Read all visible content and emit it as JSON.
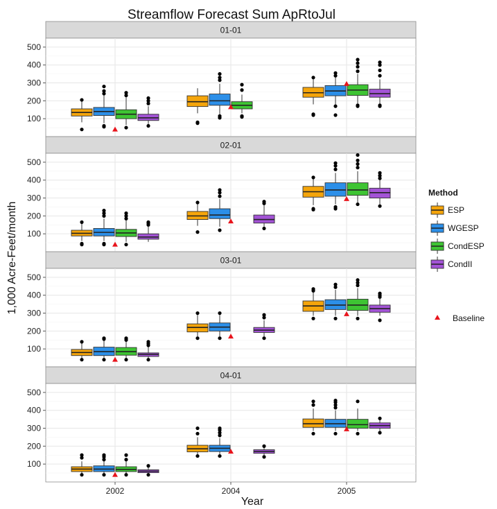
{
  "chart_data": {
    "type": "boxplot",
    "title": "Streamflow Forecast Sum ApRtoJul",
    "xlabel": "Year",
    "ylabel": "1,000 Acre-Feet/month",
    "ylim": [
      0,
      550
    ],
    "y_ticks": [
      100,
      200,
      300,
      400,
      500
    ],
    "x_categories": [
      "2002",
      "2004",
      "2005"
    ],
    "legend": {
      "title": "Method",
      "position": "right",
      "entries": [
        {
          "name": "ESP",
          "color": "#f5a50b"
        },
        {
          "name": "WGESP",
          "color": "#2c8fe8"
        },
        {
          "name": "CondESP",
          "color": "#3ec433"
        },
        {
          "name": "CondII",
          "color": "#a353d6"
        }
      ],
      "baseline": {
        "name": "Baseline",
        "color": "#e8141c"
      }
    },
    "panels": [
      {
        "strip": "01-01",
        "groups": [
          {
            "x": "2002",
            "baseline": 40,
            "boxes": [
              {
                "method": "ESP",
                "min": 80,
                "q1": 115,
                "median": 135,
                "q3": 155,
                "max": 200,
                "outliers": [
                  40,
                  205
                ]
              },
              {
                "method": "WGESP",
                "min": 75,
                "q1": 118,
                "median": 140,
                "q3": 163,
                "max": 230,
                "outliers": [
                  55,
                  60,
                  240,
                  255,
                  280
                ]
              },
              {
                "method": "CondESP",
                "min": 65,
                "q1": 100,
                "median": 125,
                "q3": 150,
                "max": 220,
                "outliers": [
                  50,
                  230,
                  245
                ]
              },
              {
                "method": "CondII",
                "min": 70,
                "q1": 90,
                "median": 105,
                "q3": 125,
                "max": 170,
                "outliers": [
                  60,
                  185,
                  200,
                  215
                ]
              }
            ]
          },
          {
            "x": "2004",
            "baseline": 165,
            "boxes": [
              {
                "method": "ESP",
                "min": 130,
                "q1": 168,
                "median": 195,
                "q3": 228,
                "max": 270,
                "outliers": [
                  75,
                  80
                ]
              },
              {
                "method": "WGESP",
                "min": 125,
                "q1": 175,
                "median": 200,
                "q3": 238,
                "max": 295,
                "outliers": [
                  105,
                  115,
                  315,
                  330,
                  350
                ]
              },
              {
                "method": "CondESP",
                "min": 130,
                "q1": 155,
                "median": 175,
                "q3": 195,
                "max": 235,
                "outliers": [
                  110,
                  115,
                  260,
                  290
                ]
              },
              {
                "method": "CondII",
                "min": 0,
                "q1": 0,
                "median": 0,
                "q3": 0,
                "max": 0,
                "outliers": [],
                "hidden": true
              }
            ]
          },
          {
            "x": "2005",
            "baseline": 295,
            "boxes": [
              {
                "method": "ESP",
                "min": 180,
                "q1": 220,
                "median": 245,
                "q3": 275,
                "max": 320,
                "outliers": [
                  120,
                  125,
                  330
                ]
              },
              {
                "method": "WGESP",
                "min": 180,
                "q1": 228,
                "median": 255,
                "q3": 285,
                "max": 330,
                "outliers": [
                  120,
                  170,
                  340,
                  355
                ]
              },
              {
                "method": "CondESP",
                "min": 185,
                "q1": 230,
                "median": 260,
                "q3": 290,
                "max": 350,
                "outliers": [
                  170,
                  175,
                  365,
                  390,
                  410,
                  430
                ]
              },
              {
                "method": "CondII",
                "min": 180,
                "q1": 220,
                "median": 240,
                "q3": 265,
                "max": 320,
                "outliers": [
                  170,
                  175,
                  340,
                  370,
                  400,
                  415
                ]
              }
            ]
          }
        ]
      },
      {
        "strip": "02-01",
        "groups": [
          {
            "x": "2002",
            "baseline": 40,
            "boxes": [
              {
                "method": "ESP",
                "min": 60,
                "q1": 88,
                "median": 103,
                "q3": 120,
                "max": 155,
                "outliers": [
                  40,
                  45,
                  165
                ]
              },
              {
                "method": "WGESP",
                "min": 60,
                "q1": 88,
                "median": 108,
                "q3": 130,
                "max": 185,
                "outliers": [
                  40,
                  45,
                  200,
                  215,
                  230
                ]
              },
              {
                "method": "CondESP",
                "min": 55,
                "q1": 85,
                "median": 105,
                "q3": 125,
                "max": 175,
                "outliers": [
                  40,
                  185,
                  200,
                  215
                ]
              },
              {
                "method": "CondII",
                "min": 55,
                "q1": 70,
                "median": 82,
                "q3": 100,
                "max": 140,
                "outliers": [
                  150,
                  160,
                  165
                ]
              }
            ]
          },
          {
            "x": "2004",
            "baseline": 170,
            "boxes": [
              {
                "method": "ESP",
                "min": 145,
                "q1": 180,
                "median": 200,
                "q3": 225,
                "max": 270,
                "outliers": [
                  110,
                  275
                ]
              },
              {
                "method": "WGESP",
                "min": 140,
                "q1": 185,
                "median": 205,
                "q3": 240,
                "max": 295,
                "outliers": [
                  120,
                  310,
                  330,
                  345
                ]
              },
              {
                "method": "CondESP",
                "min": 0,
                "q1": 0,
                "median": 0,
                "q3": 0,
                "max": 0,
                "outliers": [],
                "hidden": true
              },
              {
                "method": "CondII",
                "min": 140,
                "q1": 160,
                "median": 180,
                "q3": 205,
                "max": 260,
                "outliers": [
                  130,
                  270,
                  280
                ]
              }
            ]
          },
          {
            "x": "2005",
            "baseline": 295,
            "boxes": [
              {
                "method": "ESP",
                "min": 260,
                "q1": 305,
                "median": 335,
                "q3": 365,
                "max": 410,
                "outliers": [
                  235,
                  240,
                  415
                ]
              },
              {
                "method": "WGESP",
                "min": 265,
                "q1": 310,
                "median": 345,
                "q3": 385,
                "max": 440,
                "outliers": [
                  240,
                  250,
                  460,
                  480,
                  495
                ]
              },
              {
                "method": "CondESP",
                "min": 275,
                "q1": 315,
                "median": 345,
                "q3": 385,
                "max": 450,
                "outliers": [
                  265,
                  470,
                  490,
                  510,
                  540
                ]
              },
              {
                "method": "CondII",
                "min": 265,
                "q1": 300,
                "median": 330,
                "q3": 355,
                "max": 400,
                "outliers": [
                  255,
                  410,
                  425,
                  440
                ]
              }
            ]
          }
        ]
      },
      {
        "strip": "03-01",
        "groups": [
          {
            "x": "2002",
            "baseline": 40,
            "boxes": [
              {
                "method": "ESP",
                "min": 45,
                "q1": 63,
                "median": 80,
                "q3": 97,
                "max": 130,
                "outliers": [
                  40,
                  140
                ]
              },
              {
                "method": "WGESP",
                "min": 45,
                "q1": 63,
                "median": 85,
                "q3": 110,
                "max": 150,
                "outliers": [
                  40,
                  155,
                  160
                ]
              },
              {
                "method": "CondESP",
                "min": 45,
                "q1": 65,
                "median": 85,
                "q3": 108,
                "max": 145,
                "outliers": [
                  40,
                  150,
                  160
                ]
              },
              {
                "method": "CondII",
                "min": 45,
                "q1": 58,
                "median": 70,
                "q3": 78,
                "max": 110,
                "outliers": [
                  40,
                  120,
                  130,
                  140
                ]
              }
            ]
          },
          {
            "x": "2004",
            "baseline": 170,
            "boxes": [
              {
                "method": "ESP",
                "min": 170,
                "q1": 195,
                "median": 220,
                "q3": 240,
                "max": 290,
                "outliers": [
                  160,
                  300
                ]
              },
              {
                "method": "WGESP",
                "min": 170,
                "q1": 200,
                "median": 222,
                "q3": 245,
                "max": 290,
                "outliers": [
                  160,
                  300
                ]
              },
              {
                "method": "CondESP",
                "min": 0,
                "q1": 0,
                "median": 0,
                "q3": 0,
                "max": 0,
                "outliers": [],
                "hidden": true
              },
              {
                "method": "CondII",
                "min": 170,
                "q1": 192,
                "median": 205,
                "q3": 220,
                "max": 260,
                "outliers": [
                  160,
                  275,
                  290
                ]
              }
            ]
          },
          {
            "x": "2005",
            "baseline": 295,
            "boxes": [
              {
                "method": "ESP",
                "min": 285,
                "q1": 310,
                "median": 340,
                "q3": 368,
                "max": 420,
                "outliers": [
                  270,
                  425,
                  435
                ]
              },
              {
                "method": "WGESP",
                "min": 285,
                "q1": 320,
                "median": 345,
                "q3": 375,
                "max": 430,
                "outliers": [
                  270,
                  445,
                  460
                ]
              },
              {
                "method": "CondESP",
                "min": 285,
                "q1": 315,
                "median": 345,
                "q3": 378,
                "max": 440,
                "outliers": [
                  270,
                  455,
                  470,
                  485
                ]
              },
              {
                "method": "CondII",
                "min": 285,
                "q1": 305,
                "median": 325,
                "q3": 345,
                "max": 380,
                "outliers": [
                  260,
                  390,
                  400,
                  410
                ]
              }
            ]
          }
        ]
      },
      {
        "strip": "04-01",
        "groups": [
          {
            "x": "2002",
            "baseline": 40,
            "boxes": [
              {
                "method": "ESP",
                "min": 45,
                "q1": 58,
                "median": 72,
                "q3": 85,
                "max": 115,
                "outliers": [
                  40,
                  135,
                  150
                ]
              },
              {
                "method": "WGESP",
                "min": 45,
                "q1": 58,
                "median": 72,
                "q3": 90,
                "max": 120,
                "outliers": [
                  40,
                  125,
                  140,
                  150
                ]
              },
              {
                "method": "CondESP",
                "min": 45,
                "q1": 58,
                "median": 70,
                "q3": 85,
                "max": 115,
                "outliers": [
                  40,
                  125,
                  150
                ]
              },
              {
                "method": "CondII",
                "min": 45,
                "q1": 52,
                "median": 60,
                "q3": 68,
                "max": 85,
                "outliers": [
                  40,
                  90
                ]
              }
            ]
          },
          {
            "x": "2004",
            "baseline": 170,
            "boxes": [
              {
                "method": "ESP",
                "min": 150,
                "q1": 168,
                "median": 185,
                "q3": 205,
                "max": 250,
                "outliers": [
                  145,
                  270,
                  300
                ]
              },
              {
                "method": "WGESP",
                "min": 150,
                "q1": 170,
                "median": 188,
                "q3": 205,
                "max": 245,
                "outliers": [
                  145,
                  260,
                  275,
                  290,
                  300
                ]
              },
              {
                "method": "CondESP",
                "min": 0,
                "q1": 0,
                "median": 0,
                "q3": 0,
                "max": 0,
                "outliers": [],
                "hidden": true
              },
              {
                "method": "CondII",
                "min": 150,
                "q1": 160,
                "median": 170,
                "q3": 180,
                "max": 195,
                "outliers": [
                  140,
                  200
                ]
              }
            ]
          },
          {
            "x": "2005",
            "baseline": 295,
            "boxes": [
              {
                "method": "ESP",
                "min": 285,
                "q1": 305,
                "median": 325,
                "q3": 352,
                "max": 410,
                "outliers": [
                  270,
                  430,
                  450
                ]
              },
              {
                "method": "WGESP",
                "min": 285,
                "q1": 305,
                "median": 325,
                "q3": 350,
                "max": 400,
                "outliers": [
                  270,
                  415,
                  430,
                  445,
                  455
                ]
              },
              {
                "method": "CondESP",
                "min": 285,
                "q1": 300,
                "median": 320,
                "q3": 350,
                "max": 410,
                "outliers": [
                  270,
                  450
                ]
              },
              {
                "method": "CondII",
                "min": 285,
                "q1": 300,
                "median": 315,
                "q3": 330,
                "max": 345,
                "outliers": [
                  275,
                  355
                ]
              }
            ]
          }
        ]
      }
    ]
  }
}
